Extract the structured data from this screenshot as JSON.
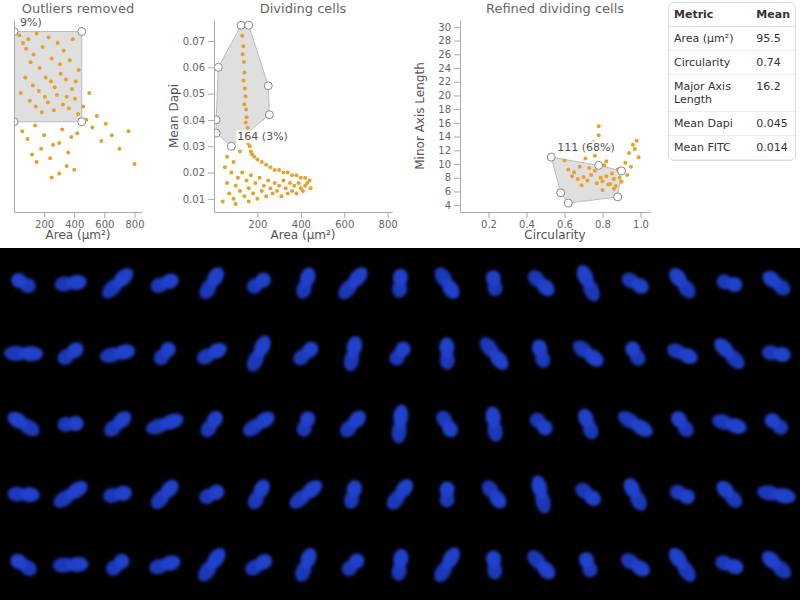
{
  "chart_data": [
    {
      "type": "scatter",
      "title": "Outliers removed",
      "x_label": "Area (µm²)",
      "color": "#e6a128",
      "grid": false,
      "tick_labels": "x",
      "xlim": [
        0,
        850
      ],
      "ylim": [
        0,
        1
      ],
      "xticks": [
        200,
        400,
        600,
        800
      ],
      "x": [
        35,
        60,
        80,
        95,
        110,
        130,
        150,
        170,
        190,
        210,
        230,
        250,
        270,
        290,
        310,
        330,
        350,
        370,
        390,
        410,
        430,
        45,
        75,
        105,
        125,
        145,
        165,
        185,
        205,
        225,
        245,
        265,
        285,
        305,
        325,
        345,
        365,
        385,
        405,
        425,
        55,
        90,
        140,
        200,
        260,
        320,
        380,
        440,
        120,
        180,
        240,
        300,
        360,
        420,
        460,
        480,
        500,
        520,
        550,
        580,
        610,
        650,
        700,
        760,
        800,
        300,
        350,
        400,
        250,
        150
      ],
      "y": [
        0.92,
        0.88,
        0.85,
        0.9,
        0.78,
        0.82,
        0.93,
        0.75,
        0.86,
        0.7,
        0.91,
        0.8,
        0.65,
        0.88,
        0.72,
        0.84,
        0.6,
        0.79,
        0.9,
        0.68,
        0.74,
        0.62,
        0.7,
        0.58,
        0.66,
        0.55,
        0.63,
        0.52,
        0.6,
        0.57,
        0.68,
        0.53,
        0.61,
        0.77,
        0.56,
        0.69,
        0.54,
        0.64,
        0.59,
        0.51,
        0.42,
        0.38,
        0.45,
        0.4,
        0.35,
        0.43,
        0.39,
        0.47,
        0.3,
        0.33,
        0.28,
        0.36,
        0.31,
        0.41,
        0.55,
        0.48,
        0.62,
        0.44,
        0.5,
        0.37,
        0.46,
        0.4,
        0.33,
        0.42,
        0.25,
        0.2,
        0.24,
        0.22,
        0.18,
        0.26
      ],
      "selection": {
        "x": [
          0,
          450,
          450,
          0
        ],
        "y": [
          0.94,
          0.94,
          0.47,
          0.47
        ]
      },
      "selection_label": "9%)"
    },
    {
      "type": "scatter",
      "title": "Dividing cells",
      "x_label": "Area (µm²)",
      "y_label": "Mean Dapi",
      "color": "#e6a128",
      "grid": false,
      "xlim": [
        0,
        820
      ],
      "ylim": [
        0.005,
        0.078
      ],
      "xticks": [
        200,
        400,
        600,
        800
      ],
      "yticks": [
        0.01,
        0.02,
        0.03,
        0.04,
        0.05,
        0.06,
        0.07
      ],
      "x": [
        130,
        135,
        132,
        138,
        140,
        136,
        142,
        145,
        140,
        148,
        150,
        146,
        155,
        152,
        160,
        158,
        165,
        170,
        175,
        185,
        200,
        220,
        240,
        260,
        280,
        300,
        320,
        340,
        360,
        380,
        400,
        420,
        440,
        50,
        60,
        70,
        80,
        90,
        100,
        110,
        120,
        130,
        140,
        150,
        160,
        170,
        180,
        190,
        200,
        210,
        220,
        230,
        240,
        250,
        260,
        270,
        280,
        290,
        300,
        310,
        320,
        330,
        340,
        350,
        360,
        370,
        380,
        390,
        400,
        410,
        420,
        430,
        445,
        40,
        100,
        160,
        60,
        90,
        120
      ],
      "y": [
        0.072,
        0.068,
        0.065,
        0.062,
        0.058,
        0.055,
        0.052,
        0.049,
        0.046,
        0.044,
        0.041,
        0.039,
        0.037,
        0.035,
        0.033,
        0.031,
        0.03,
        0.028,
        0.027,
        0.026,
        0.025,
        0.024,
        0.023,
        0.022,
        0.021,
        0.021,
        0.02,
        0.02,
        0.019,
        0.019,
        0.018,
        0.018,
        0.017,
        0.022,
        0.016,
        0.012,
        0.02,
        0.01,
        0.015,
        0.018,
        0.013,
        0.02,
        0.011,
        0.017,
        0.014,
        0.019,
        0.012,
        0.016,
        0.01,
        0.018,
        0.013,
        0.015,
        0.011,
        0.017,
        0.014,
        0.012,
        0.016,
        0.013,
        0.015,
        0.011,
        0.017,
        0.014,
        0.012,
        0.016,
        0.013,
        0.015,
        0.012,
        0.016,
        0.014,
        0.013,
        0.015,
        0.016,
        0.014,
        0.009,
        0.008,
        0.009,
        0.026,
        0.024,
        0.028
      ],
      "selection": {
        "x": [
          80,
          10,
          10,
          20,
          125,
          160,
          250,
          255
        ],
        "y": [
          0.03,
          0.035,
          0.04,
          0.06,
          0.076,
          0.076,
          0.053,
          0.042
        ]
      },
      "selection_label": "164 (3%)"
    },
    {
      "type": "scatter",
      "title": "Refined dividing cells",
      "x_label": "Circularity",
      "y_label": "Minor Axis Length",
      "color": "#e6a128",
      "grid": false,
      "xlim": [
        0.05,
        1.05
      ],
      "ylim": [
        3,
        31
      ],
      "xticks": [
        0.2,
        0.4,
        0.6,
        0.8,
        {
          "value": 1,
          "label": "1.0"
        }
      ],
      "yticks": [
        4,
        6,
        8,
        10,
        12,
        14,
        16,
        18,
        20,
        22,
        24,
        26,
        28,
        30
      ],
      "x": [
        0.6,
        0.62,
        0.65,
        0.66,
        0.68,
        0.7,
        0.71,
        0.72,
        0.74,
        0.75,
        0.76,
        0.77,
        0.78,
        0.79,
        0.8,
        0.81,
        0.82,
        0.83,
        0.84,
        0.85,
        0.86,
        0.87,
        0.88,
        0.89,
        0.9,
        0.92,
        0.94,
        0.96,
        0.98,
        0.99,
        0.64,
        0.69,
        0.73,
        0.78,
        0.82,
        0.86,
        0.9,
        0.95,
        0.97,
        0.58,
        0.8,
        0.76,
        0.93,
        0.67,
        0.84
      ],
      "y": [
        10.5,
        9.2,
        8.8,
        12.0,
        9.6,
        8.1,
        10.8,
        7.6,
        8.4,
        13.2,
        9.0,
        7.2,
        15.5,
        8.0,
        7.5,
        9.8,
        8.2,
        7.0,
        12.4,
        8.6,
        7.8,
        6.8,
        9.2,
        8.0,
        7.4,
        10.2,
        11.6,
        12.8,
        13.4,
        11.0,
        8.2,
        6.9,
        9.4,
        14.2,
        10.4,
        6.4,
        8.8,
        9.6,
        12.2,
        11.8,
        6.2,
        11.2,
        8.4,
        7.8,
        7.1
      ],
      "selection": {
        "x": [
          0.53,
          0.58,
          0.62,
          0.88,
          0.9,
          0.78
        ],
        "y": [
          11.0,
          5.8,
          4.3,
          5.2,
          9.0,
          9.8
        ]
      },
      "selection_label": "111 (68%)"
    }
  ],
  "table": {
    "columns": [
      "Metric",
      "Mean"
    ],
    "rows": [
      [
        "Area (µm²)",
        95.5
      ],
      [
        "Circularity",
        0.74
      ],
      [
        "Major Axis Length",
        16.2
      ],
      [
        "Mean Dapi",
        0.045
      ],
      [
        "Mean FITC",
        0.014
      ]
    ]
  }
}
